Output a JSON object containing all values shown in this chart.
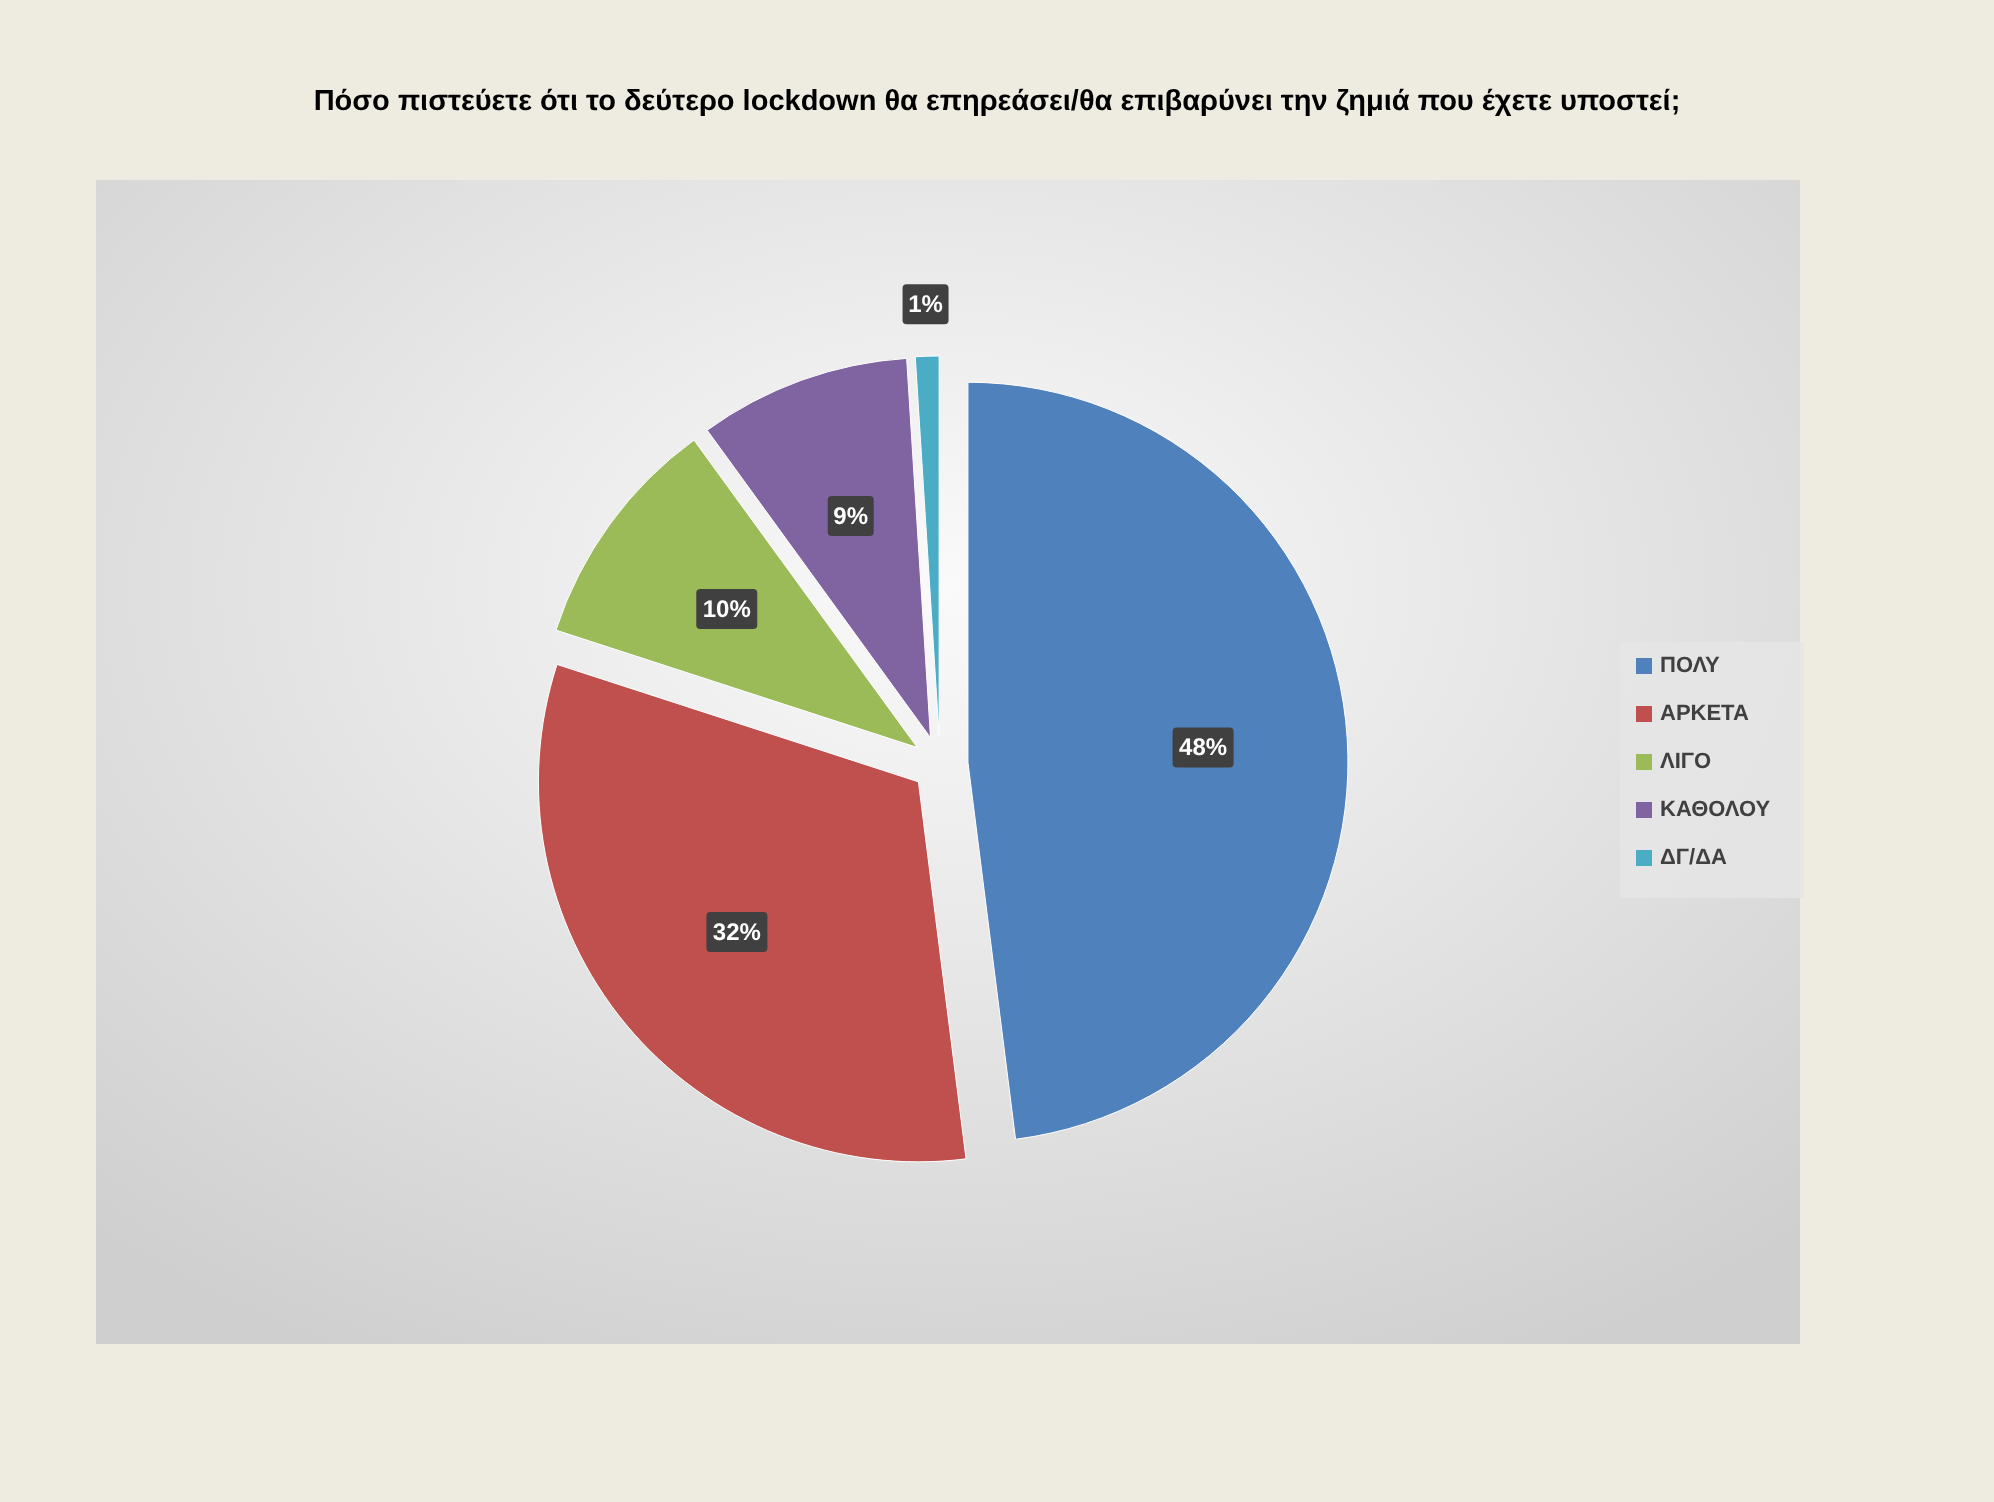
{
  "chart_data": {
    "type": "pie",
    "title": "Πόσο πιστεύετε ότι το δεύτερο lockdown θα επηρεάσει/θα επιβαρύνει την ζημιά που έχετε υποστεί;",
    "categories": [
      "ΠΟΛΥ",
      "ΑΡΚΕΤΑ",
      "ΛΙΓΟ",
      "ΚΑΘΟΛΟΥ",
      "ΔΓ/ΔΑ"
    ],
    "values": [
      48,
      32,
      10,
      9,
      1
    ],
    "colors": [
      "#4f81bd",
      "#c0504d",
      "#9bbb59",
      "#8064a2",
      "#4bacc6"
    ],
    "value_labels": [
      "48%",
      "32%",
      "10%",
      "9%",
      "1%"
    ],
    "legend": "right"
  }
}
